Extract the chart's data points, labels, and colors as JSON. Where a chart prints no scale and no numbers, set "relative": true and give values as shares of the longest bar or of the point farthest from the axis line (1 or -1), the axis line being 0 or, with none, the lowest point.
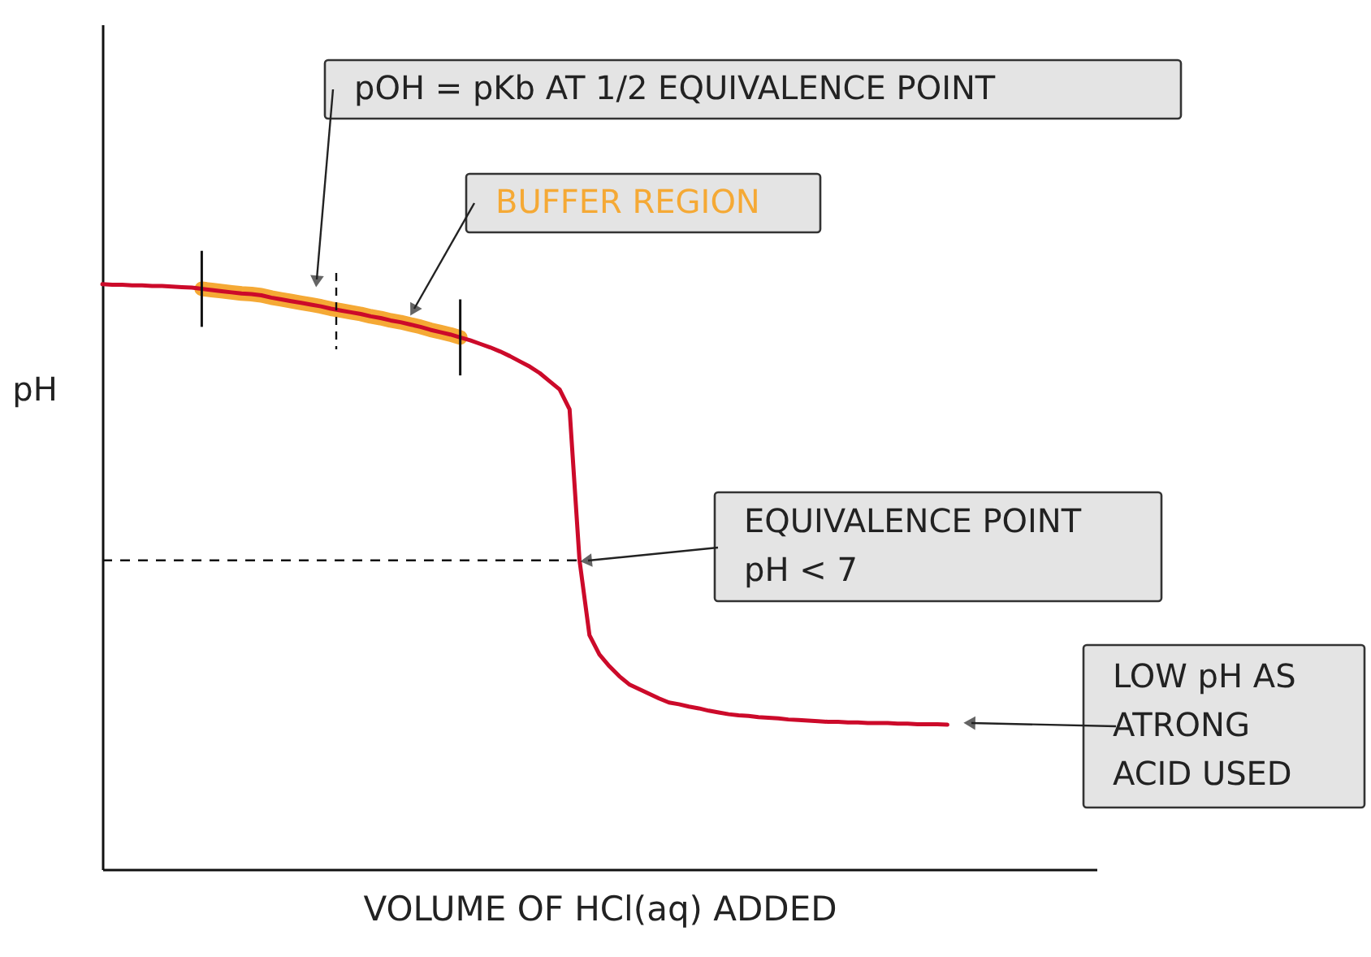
{
  "chart_data": {
    "type": "line",
    "relative": true,
    "xlabel": "VOLUME OF HCl(aq) ADDED",
    "ylabel": "pH",
    "tick_labels": false,
    "grid": false,
    "marker": "none",
    "line_style": "solid",
    "categories": [
      null,
      null,
      null,
      null,
      null,
      null,
      null,
      null,
      null,
      null,
      null,
      null,
      null,
      null,
      null,
      null,
      null,
      null,
      null,
      null,
      null,
      null,
      null,
      null,
      null,
      null,
      null,
      null,
      null,
      null,
      null,
      null,
      null,
      null,
      null,
      null,
      null,
      null,
      null,
      null,
      null,
      null,
      null,
      null,
      null,
      null,
      null,
      null,
      null,
      null,
      null,
      null,
      null,
      null,
      null,
      null,
      null,
      null,
      null,
      null,
      null,
      null,
      null,
      null,
      null,
      null,
      null,
      null,
      null,
      null,
      null,
      null,
      null,
      null,
      null,
      null,
      null,
      null,
      null,
      null,
      null,
      null,
      null,
      null,
      null,
      null,
      null,
      null,
      null,
      null,
      null,
      null,
      null,
      null,
      null,
      null,
      null,
      null,
      null,
      null,
      null
    ],
    "series": [
      {
        "type": "line",
        "color": "#cc0a2a",
        "values": [
          1,
          0.999,
          0.999,
          0.998,
          0.998,
          0.997,
          0.997,
          0.996,
          0.995,
          0.994,
          0.992,
          0.99,
          0.988,
          0.986,
          0.984,
          0.983,
          0.981,
          0.977,
          0.974,
          0.971,
          0.968,
          0.965,
          0.962,
          0.958,
          0.955,
          0.952,
          0.949,
          0.945,
          0.942,
          0.938,
          0.935,
          0.931,
          0.927,
          0.922,
          0.918,
          0.914,
          0.909,
          0.904,
          0.898,
          0.892,
          0.885,
          0.877,
          0.868,
          0.859,
          0.848,
          0.834,
          0.82,
          0.786,
          0.528,
          0.4,
          0.367,
          0.347,
          0.33,
          0.316,
          0.308,
          0.3,
          0.292,
          0.285,
          0.282,
          0.278,
          0.275,
          0.271,
          0.268,
          0.265,
          0.263,
          0.262,
          0.26,
          0.259,
          0.258,
          0.256,
          0.255,
          0.254,
          0.253,
          0.252,
          0.252,
          0.251,
          0.251,
          0.25,
          0.25,
          0.25,
          0.249,
          0.249,
          0.248,
          0.248,
          0.248,
          0.247,
          null,
          null,
          null,
          null,
          null,
          null,
          null,
          null,
          null,
          null,
          null,
          null,
          null,
          null,
          null
        ]
      },
      {
        "type": "line",
        "color": "#f5a935",
        "values": [
          null,
          null,
          null,
          null,
          null,
          null,
          null,
          null,
          null,
          null,
          0.992,
          0.99,
          0.988,
          0.986,
          0.984,
          0.983,
          0.981,
          0.977,
          0.974,
          0.971,
          0.968,
          0.965,
          0.962,
          0.958,
          0.955,
          0.952,
          0.949,
          0.945,
          0.942,
          0.938,
          0.935,
          0.931,
          0.927,
          0.922,
          0.918,
          0.914,
          0.909,
          null,
          null,
          null,
          null,
          null,
          null,
          null,
          null,
          null,
          null,
          null,
          null,
          null,
          null,
          null,
          null,
          null,
          null,
          null,
          null,
          null,
          null,
          null,
          null,
          null,
          null,
          null,
          null,
          null,
          null,
          null,
          null,
          null,
          null,
          null,
          null,
          null,
          null,
          null,
          null,
          null,
          null,
          null,
          null,
          null,
          null,
          null,
          null,
          null,
          null,
          null,
          null,
          null,
          null,
          null,
          null,
          null,
          null,
          null,
          null,
          null,
          null,
          null,
          null
        ]
      }
    ],
    "ref_lines": [
      {
        "axis": "y",
        "value": 0.528,
        "line_style": "dashed"
      }
    ],
    "annotations": [
      "pOH = pKb AT 1/2 EQUIVALENCE POINT",
      "BUFFER REGION",
      "EQUIVALENCE POINT\npH < 7",
      "LOW pH AS\nATRONG\nACID USED"
    ]
  }
}
